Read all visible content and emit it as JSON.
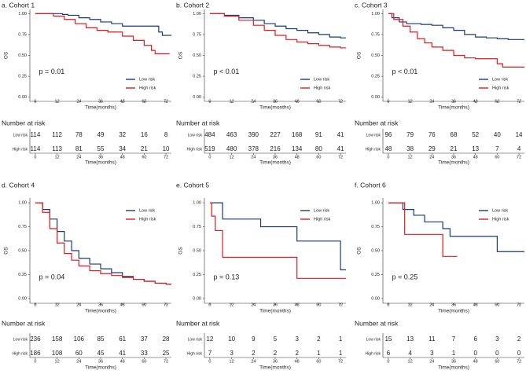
{
  "chart_data": [
    {
      "type": "step",
      "title": "a. Cohort 1",
      "xlabel": "Time(months)",
      "ylabel": "OS",
      "annotation": "p = 0.01",
      "legend": "lower right",
      "xlim": [
        -3,
        75
      ],
      "xticks": [
        0,
        12,
        24,
        36,
        48,
        60,
        72
      ],
      "ylim": [
        -0.05,
        1.05
      ],
      "yticks": [
        {
          "value": 0,
          "label": "0.00"
        },
        {
          "value": 0.25,
          "label": "0.25"
        },
        {
          "value": 0.5,
          "label": "0.50"
        },
        {
          "value": 0.75,
          "label": "0.75"
        },
        {
          "value": 1,
          "label": "1.00"
        }
      ],
      "series": [
        {
          "name": "Low risk",
          "color": "#1a3a7a",
          "x": [
            0,
            15,
            18,
            24,
            30,
            36,
            42,
            48,
            60,
            68,
            70,
            75
          ],
          "values": [
            1,
            0.99,
            0.98,
            0.95,
            0.93,
            0.9,
            0.88,
            0.85,
            0.85,
            0.78,
            0.74,
            0.74
          ]
        },
        {
          "name": "High risk",
          "color": "#e31a1c",
          "x": [
            0,
            10,
            16,
            22,
            28,
            34,
            40,
            48,
            54,
            60,
            64,
            66,
            74
          ],
          "values": [
            1,
            0.97,
            0.93,
            0.88,
            0.83,
            0.8,
            0.78,
            0.73,
            0.68,
            0.62,
            0.56,
            0.52,
            0.52
          ]
        }
      ],
      "risk_table": {
        "title": "Number at risk",
        "rows": [
          {
            "name": "Low risk",
            "values": [
              114,
              112,
              78,
              49,
              32,
              16,
              8
            ]
          },
          {
            "name": "High risk",
            "values": [
              114,
              113,
              81,
              55,
              34,
              21,
              10
            ]
          }
        ]
      }
    },
    {
      "type": "step",
      "title": "b. Cohort 2",
      "xlabel": "Time(months)",
      "ylabel": "OS",
      "annotation": "p < 0.01",
      "legend": "lower right",
      "xlim": [
        -3,
        75
      ],
      "xticks": [
        0,
        12,
        24,
        36,
        48,
        60,
        72
      ],
      "ylim": [
        -0.05,
        1.05
      ],
      "yticks": [
        {
          "value": 0,
          "label": "0.00"
        },
        {
          "value": 0.25,
          "label": "0.25"
        },
        {
          "value": 0.5,
          "label": "0.50"
        },
        {
          "value": 0.75,
          "label": "0.75"
        },
        {
          "value": 1,
          "label": "1.00"
        }
      ],
      "series": [
        {
          "name": "Low risk",
          "color": "#1a3a7a",
          "x": [
            0,
            8,
            16,
            24,
            30,
            36,
            42,
            48,
            54,
            60,
            66,
            72,
            75
          ],
          "values": [
            1,
            0.98,
            0.95,
            0.92,
            0.88,
            0.85,
            0.82,
            0.8,
            0.77,
            0.75,
            0.72,
            0.71,
            0.71
          ]
        },
        {
          "name": "High risk",
          "color": "#e31a1c",
          "x": [
            0,
            8,
            16,
            24,
            30,
            36,
            42,
            48,
            54,
            60,
            66,
            72,
            75
          ],
          "values": [
            1,
            0.97,
            0.92,
            0.86,
            0.8,
            0.74,
            0.69,
            0.66,
            0.64,
            0.62,
            0.6,
            0.59,
            0.59
          ]
        }
      ],
      "risk_table": {
        "title": "Number at risk",
        "rows": [
          {
            "name": "Low risk",
            "values": [
              484,
              463,
              390,
              227,
              168,
              91,
              41
            ]
          },
          {
            "name": "High risk",
            "values": [
              519,
              480,
              378,
              216,
              134,
              80,
              41
            ]
          }
        ]
      }
    },
    {
      "type": "step",
      "title": "c. Cohort 3",
      "xlabel": "Time(months)",
      "ylabel": "OS",
      "annotation": "p < 0.01",
      "legend": "lower right",
      "xlim": [
        -3,
        75
      ],
      "xticks": [
        0,
        12,
        24,
        36,
        48,
        60,
        72
      ],
      "ylim": [
        -0.05,
        1.05
      ],
      "yticks": [
        {
          "value": 0,
          "label": "0.00"
        },
        {
          "value": 0.25,
          "label": "0.25"
        },
        {
          "value": 0.5,
          "label": "0.50"
        },
        {
          "value": 0.75,
          "label": "0.75"
        },
        {
          "value": 1,
          "label": "1.00"
        }
      ],
      "series": [
        {
          "name": "Low risk",
          "color": "#1a3a7a",
          "x": [
            0,
            2,
            6,
            10,
            18,
            24,
            30,
            36,
            42,
            48,
            54,
            60,
            66,
            75
          ],
          "values": [
            1,
            0.95,
            0.9,
            0.88,
            0.87,
            0.86,
            0.83,
            0.8,
            0.75,
            0.72,
            0.71,
            0.7,
            0.69,
            0.69
          ]
        },
        {
          "name": "High risk",
          "color": "#e31a1c",
          "x": [
            0,
            3,
            8,
            12,
            16,
            20,
            24,
            30,
            36,
            42,
            48,
            60,
            63,
            75
          ],
          "values": [
            1,
            0.93,
            0.85,
            0.78,
            0.7,
            0.65,
            0.6,
            0.56,
            0.5,
            0.47,
            0.46,
            0.4,
            0.36,
            0.36
          ]
        }
      ],
      "risk_table": {
        "title": "Number at risk",
        "rows": [
          {
            "name": "Low risk",
            "values": [
              96,
              79,
              76,
              68,
              52,
              40,
              14
            ]
          },
          {
            "name": "High risk",
            "values": [
              48,
              38,
              29,
              21,
              13,
              7,
              4
            ]
          }
        ]
      }
    },
    {
      "type": "step",
      "title": "d. Cohort 4",
      "xlabel": "Time(months)",
      "ylabel": "OS",
      "annotation": "p = 0.04",
      "legend": "upper right",
      "xlim": [
        -3,
        75
      ],
      "xticks": [
        0,
        12,
        24,
        36,
        48,
        60,
        72
      ],
      "ylim": [
        -0.05,
        1.05
      ],
      "yticks": [
        {
          "value": 0,
          "label": "0.00"
        },
        {
          "value": 0.25,
          "label": "0.25"
        },
        {
          "value": 0.5,
          "label": "0.50"
        },
        {
          "value": 0.75,
          "label": "0.75"
        },
        {
          "value": 1,
          "label": "1.00"
        }
      ],
      "series": [
        {
          "name": "Low risk",
          "color": "#1a3a7a",
          "x": [
            0,
            4,
            8,
            12,
            16,
            20,
            24,
            30,
            36,
            42,
            48,
            54,
            60,
            66,
            72,
            75
          ],
          "values": [
            1,
            0.93,
            0.83,
            0.7,
            0.6,
            0.5,
            0.42,
            0.36,
            0.31,
            0.27,
            0.23,
            0.2,
            0.18,
            0.16,
            0.15,
            0.15
          ]
        },
        {
          "name": "High risk",
          "color": "#e31a1c",
          "x": [
            0,
            4,
            8,
            12,
            16,
            20,
            24,
            30,
            36,
            42,
            48,
            54,
            60,
            66,
            72,
            75
          ],
          "values": [
            1,
            0.9,
            0.73,
            0.58,
            0.47,
            0.4,
            0.34,
            0.29,
            0.26,
            0.24,
            0.22,
            0.2,
            0.18,
            0.16,
            0.15,
            0.15
          ]
        }
      ],
      "risk_table": {
        "title": "Number at risk",
        "rows": [
          {
            "name": "Low risk",
            "values": [
              236,
              158,
              106,
              85,
              61,
              37,
              28
            ]
          },
          {
            "name": "High risk",
            "values": [
              186,
              108,
              60,
              45,
              41,
              33,
              25
            ]
          }
        ]
      }
    },
    {
      "type": "step",
      "title": "e. Cohort 5",
      "xlabel": "Time(months)",
      "ylabel": "OS",
      "annotation": "p = 0.13",
      "legend": "upper right",
      "xlim": [
        -3,
        75
      ],
      "xticks": [
        0,
        12,
        24,
        36,
        48,
        60,
        72
      ],
      "ylim": [
        -0.05,
        1.05
      ],
      "yticks": [
        {
          "value": 0,
          "label": "0.00"
        },
        {
          "value": 0.25,
          "label": "0.25"
        },
        {
          "value": 0.5,
          "label": "0.50"
        },
        {
          "value": 0.75,
          "label": "0.75"
        },
        {
          "value": 1,
          "label": "1.00"
        }
      ],
      "series": [
        {
          "name": "Low risk",
          "color": "#1a3a7a",
          "x": [
            0,
            7,
            28,
            48,
            72,
            75
          ],
          "values": [
            1,
            0.83,
            0.75,
            0.6,
            0.3,
            0.3
          ]
        },
        {
          "name": "High risk",
          "color": "#e31a1c",
          "x": [
            0,
            1,
            3,
            7,
            48,
            75
          ],
          "values": [
            1,
            0.86,
            0.71,
            0.43,
            0.21,
            0.21
          ]
        }
      ],
      "risk_table": {
        "title": "Number at risk",
        "rows": [
          {
            "name": "Low risk",
            "values": [
              12,
              10,
              9,
              5,
              3,
              2,
              1
            ]
          },
          {
            "name": "High risk",
            "values": [
              7,
              3,
              2,
              2,
              2,
              1,
              1
            ]
          }
        ]
      }
    },
    {
      "type": "step",
      "title": "f. Cohort 6",
      "xlabel": "Time(months)",
      "ylabel": "OS",
      "annotation": "p = 0.25",
      "legend": "upper right",
      "xlim": [
        -3,
        75
      ],
      "xticks": [
        0,
        12,
        24,
        36,
        48,
        60,
        72
      ],
      "ylim": [
        -0.05,
        1.05
      ],
      "yticks": [
        {
          "value": 0,
          "label": "0.00"
        },
        {
          "value": 0.25,
          "label": "0.25"
        },
        {
          "value": 0.5,
          "label": "0.50"
        },
        {
          "value": 0.75,
          "label": "0.75"
        },
        {
          "value": 1,
          "label": "1.00"
        }
      ],
      "series": [
        {
          "name": "Low risk",
          "color": "#1a3a7a",
          "x": [
            0,
            8,
            14,
            20,
            30,
            34,
            60,
            75
          ],
          "values": [
            1,
            0.93,
            0.87,
            0.8,
            0.73,
            0.65,
            0.49,
            0.49
          ]
        },
        {
          "name": "High risk",
          "color": "#e31a1c",
          "x": [
            0,
            9,
            30,
            38
          ],
          "values": [
            1,
            0.67,
            0.44,
            0.44
          ]
        }
      ],
      "risk_table": {
        "title": "Number at risk",
        "rows": [
          {
            "name": "Low risk",
            "values": [
              15,
              13,
              11,
              7,
              6,
              3,
              2
            ]
          },
          {
            "name": "High risk",
            "values": [
              6,
              4,
              3,
              1,
              0,
              0,
              0
            ]
          }
        ]
      }
    }
  ]
}
